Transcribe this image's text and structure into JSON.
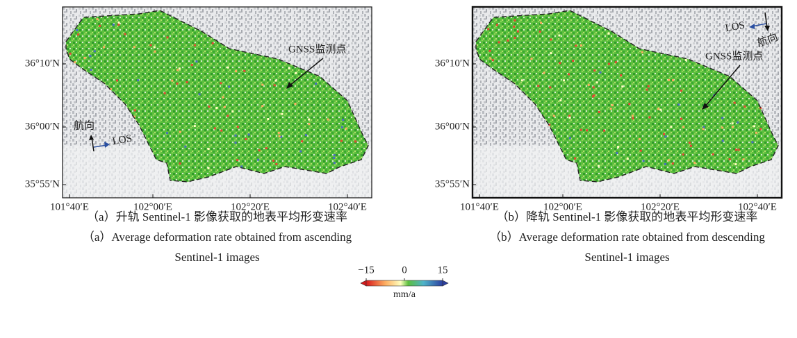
{
  "panels": [
    {
      "y_ticks": [
        "36°10′N",
        "36°00′N",
        "35°55′N"
      ],
      "x_ticks": [
        "101°40′E",
        "102°00′E",
        "102°20′E",
        "102°40′E"
      ],
      "gnss_label": "GNSS监测点",
      "heading_label": "航向",
      "los_label": "LOS",
      "caption_zh": "（a）升轨 Sentinel-1 影像获取的地表平均形变速率",
      "caption_en": [
        "（a）Average deformation rate obtained from ascending",
        "Sentinel-1 images"
      ]
    },
    {
      "y_ticks": [
        "36°10′N",
        "36°00′N",
        "35°55′N"
      ],
      "x_ticks": [
        "101°40′E",
        "102°00′E",
        "102°20′E",
        "102°40′E"
      ],
      "gnss_label": "GNSS监测点",
      "heading_label": "航向",
      "los_label": "LOS",
      "caption_zh": "（b）降轨 Sentinel-1 影像获取的地表平均形变速率",
      "caption_en": [
        "（b）Average deformation rate obtained from descending",
        "Sentinel-1 images"
      ]
    }
  ],
  "colorbar": {
    "lim": [
      -15,
      15
    ],
    "ticks": [
      {
        "value": -15,
        "label": "−15"
      },
      0,
      15
    ],
    "unit": "mm/a"
  }
}
